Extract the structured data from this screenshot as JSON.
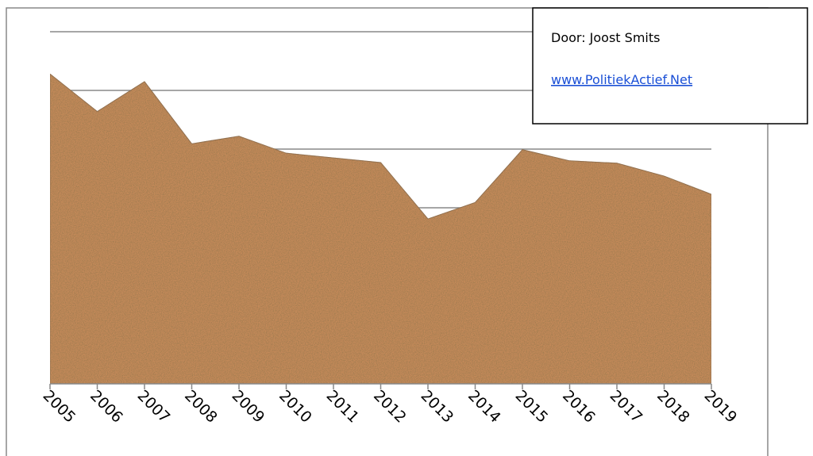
{
  "chart_data": {
    "type": "area",
    "categories": [
      "2005",
      "2006",
      "2007",
      "2008",
      "2009",
      "2010",
      "2011",
      "2012",
      "2013",
      "2014",
      "2015",
      "2016",
      "2017",
      "2018",
      "2019"
    ],
    "values": [
      5.28,
      4.64,
      5.15,
      4.09,
      4.22,
      3.93,
      3.85,
      3.77,
      2.81,
      3.09,
      3.99,
      3.8,
      3.76,
      3.54,
      3.23
    ],
    "color": "#c48a5a",
    "ylim": [
      0,
      6
    ],
    "yticks": [
      0,
      1,
      2,
      3,
      4,
      5,
      6
    ],
    "show_ytick_labels": false,
    "grid": true,
    "annotations": {
      "author": "Door: Joost Smits",
      "link": "www.PolitiekActief.Net"
    }
  }
}
